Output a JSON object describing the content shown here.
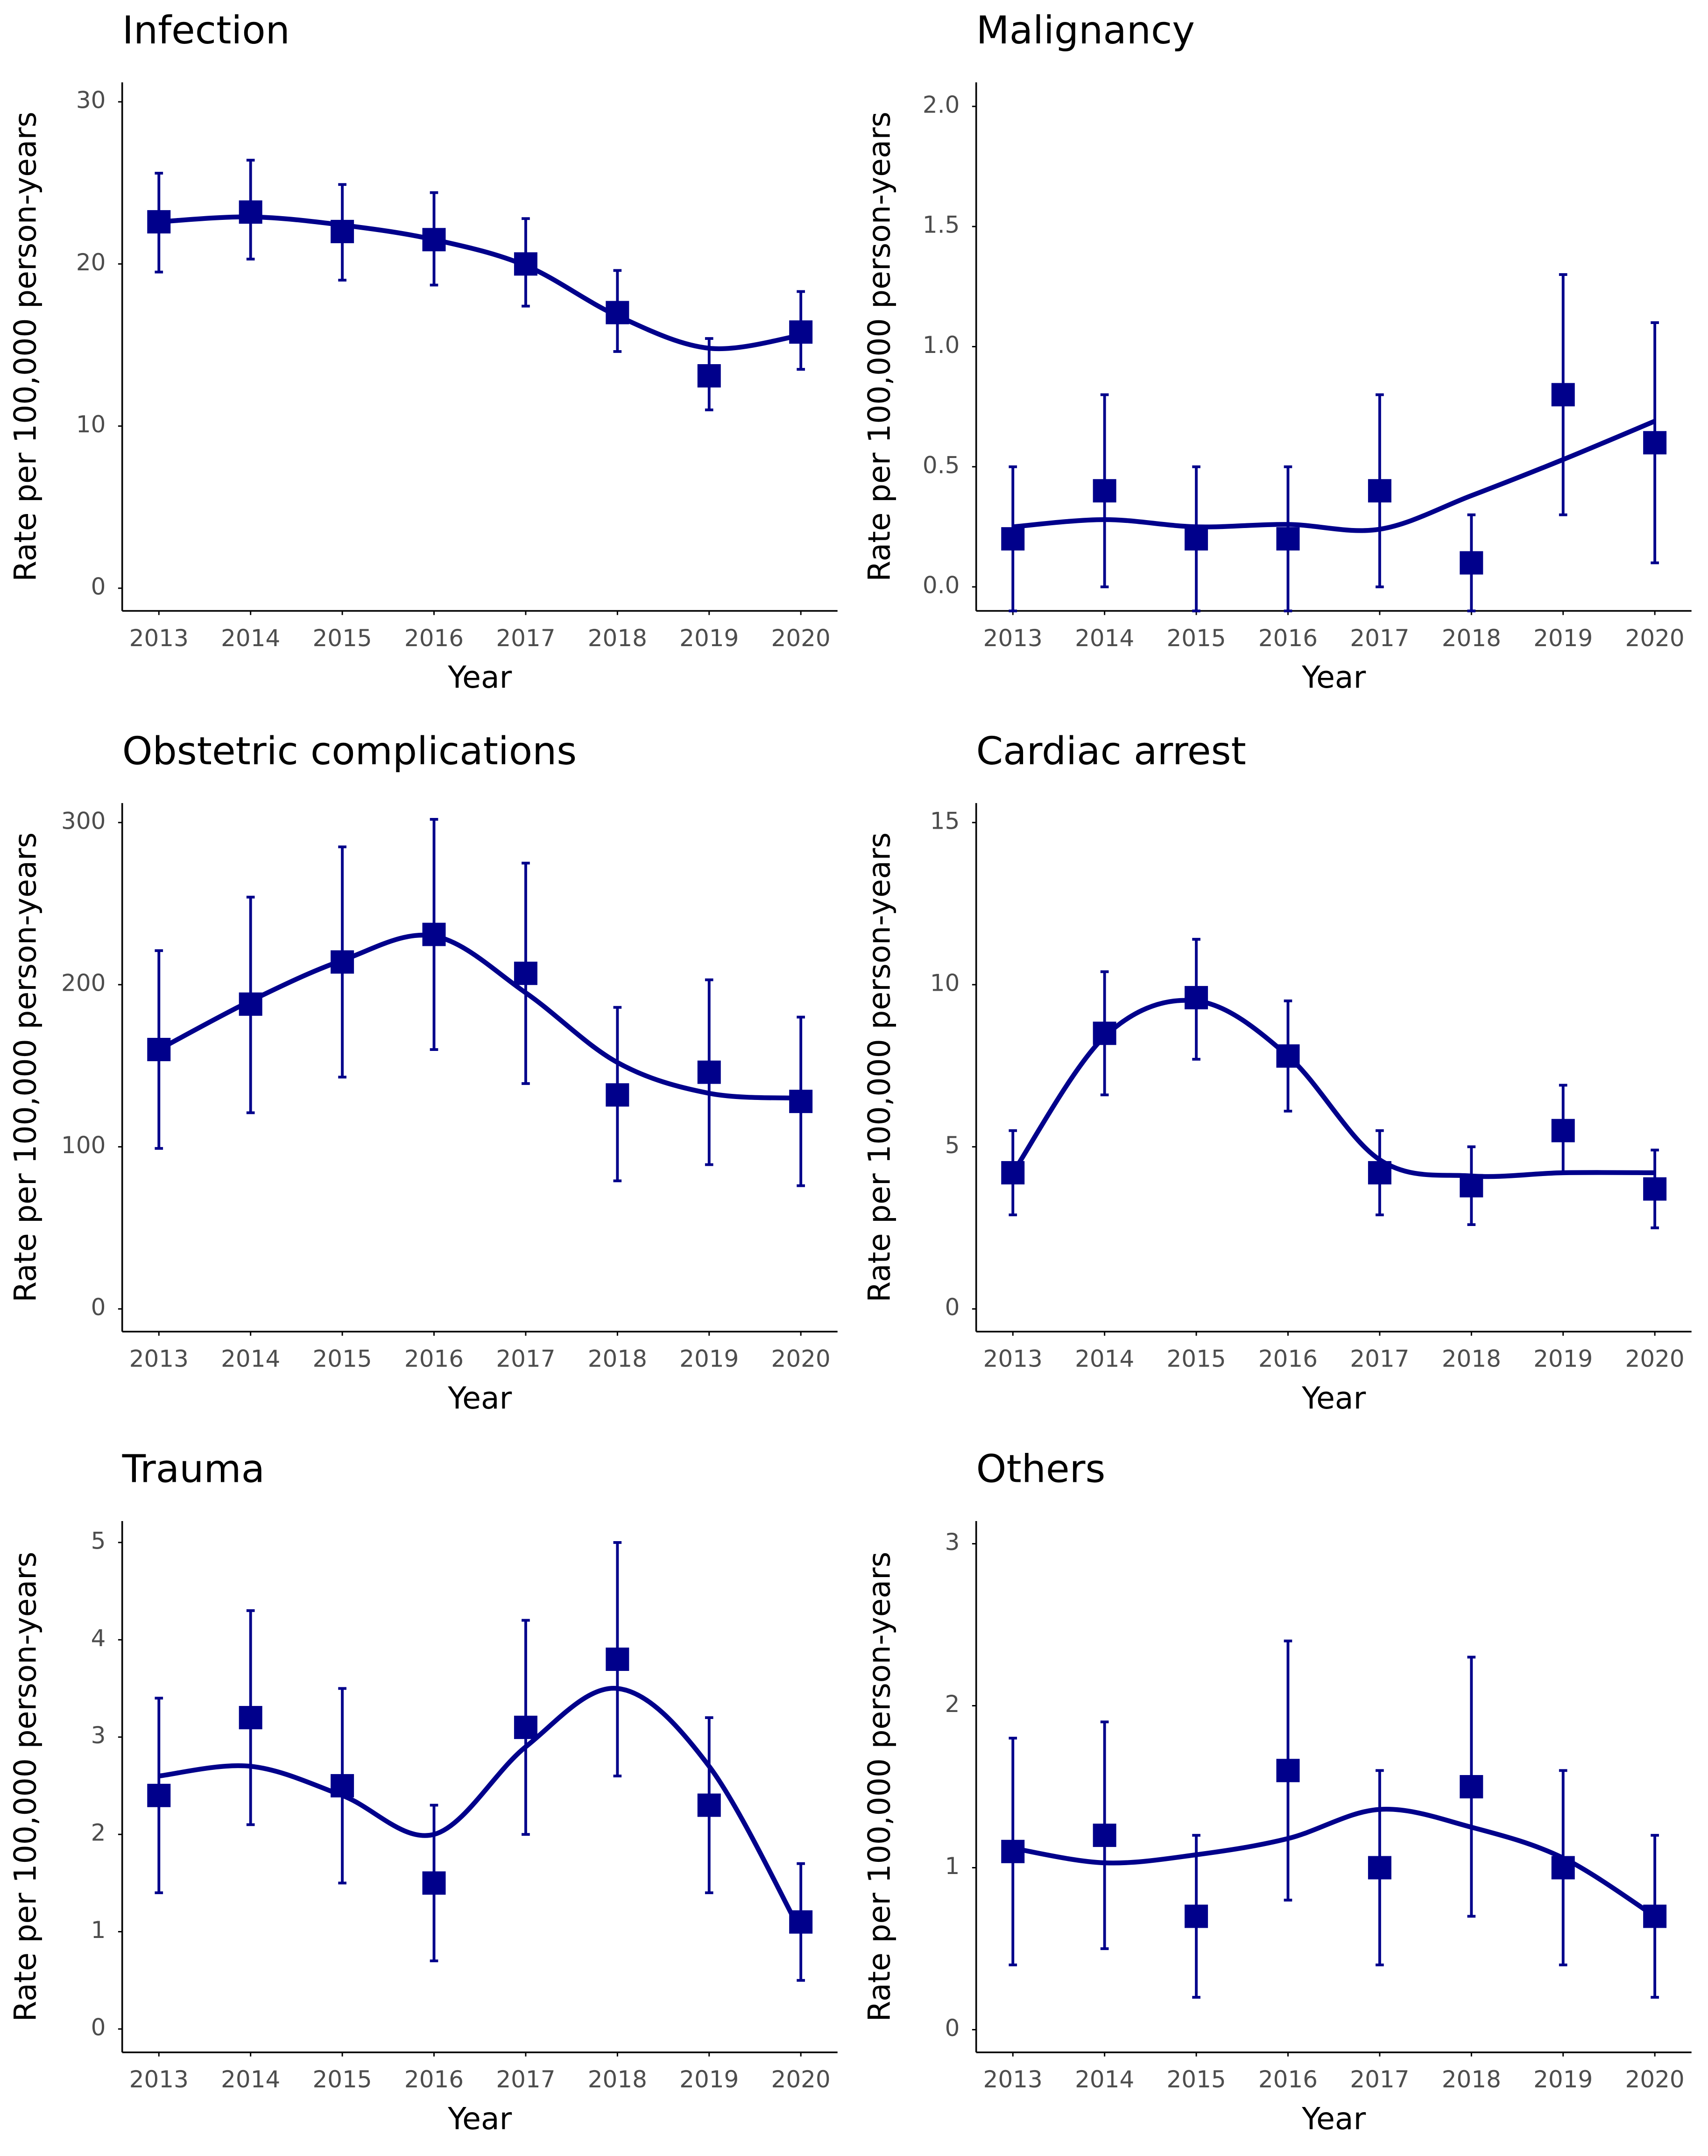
{
  "chart_data": [
    {
      "type": "errorbar",
      "title": "Infection",
      "xlabel": "Year",
      "ylabel": "Rate per 100,000 person-years",
      "color": "#00008b",
      "x": [
        2013,
        2014,
        2015,
        2016,
        2017,
        2018,
        2019,
        2020
      ],
      "values": [
        22.6,
        23.2,
        22.0,
        21.5,
        20.0,
        17.0,
        13.1,
        15.8
      ],
      "lower": [
        19.5,
        20.3,
        19.0,
        18.7,
        17.4,
        14.6,
        11.0,
        13.5
      ],
      "upper": [
        25.6,
        26.4,
        24.9,
        24.4,
        22.8,
        19.6,
        15.4,
        18.3
      ],
      "trend": [
        22.6,
        22.9,
        22.4,
        21.5,
        19.9,
        16.8,
        14.8,
        15.6
      ],
      "xlim": [
        2012.6,
        2020.4
      ],
      "xticks": [
        2013,
        2014,
        2015,
        2016,
        2017,
        2018,
        2019,
        2020
      ],
      "ylim": [
        -1.4,
        31.2
      ],
      "yticks": [
        0,
        10,
        20,
        30
      ]
    },
    {
      "type": "errorbar",
      "title": "Malignancy",
      "xlabel": "Year",
      "ylabel": "Rate per 100,000 person-years",
      "color": "#00008b",
      "x": [
        2013,
        2014,
        2015,
        2016,
        2017,
        2018,
        2019,
        2020
      ],
      "values": [
        0.2,
        0.4,
        0.2,
        0.2,
        0.4,
        0.1,
        0.8,
        0.6
      ],
      "lower": [
        -0.1,
        0.0,
        -0.1,
        -0.1,
        0.0,
        -0.1,
        0.3,
        0.1
      ],
      "upper": [
        0.5,
        0.8,
        0.5,
        0.5,
        0.8,
        0.3,
        1.3,
        1.1
      ],
      "trend": [
        0.25,
        0.28,
        0.25,
        0.26,
        0.24,
        0.38,
        0.53,
        0.69
      ],
      "xlim": [
        2012.6,
        2020.4
      ],
      "xticks": [
        2013,
        2014,
        2015,
        2016,
        2017,
        2018,
        2019,
        2020
      ],
      "ylim": [
        -0.1,
        2.1
      ],
      "yticks": [
        {
          "value": 0,
          "label": "0.0"
        },
        0.5,
        {
          "value": 1,
          "label": "1.0"
        },
        1.5,
        {
          "value": 2,
          "label": "2.0"
        }
      ]
    },
    {
      "type": "errorbar",
      "title": "Obstetric complications",
      "xlabel": "Year",
      "ylabel": "Rate per 100,000 person-years",
      "color": "#00008b",
      "x": [
        2013,
        2014,
        2015,
        2016,
        2017,
        2018,
        2019,
        2020
      ],
      "values": [
        160,
        188,
        214,
        231,
        207,
        132,
        146,
        128
      ],
      "lower": [
        99,
        121,
        143,
        160,
        139,
        79,
        89,
        76
      ],
      "upper": [
        221,
        254,
        285,
        302,
        275,
        186,
        203,
        180
      ],
      "trend": [
        160,
        190,
        215,
        230,
        195,
        152,
        133,
        130
      ],
      "xlim": [
        2012.6,
        2020.4
      ],
      "xticks": [
        2013,
        2014,
        2015,
        2016,
        2017,
        2018,
        2019,
        2020
      ],
      "ylim": [
        -14,
        312
      ],
      "yticks": [
        0,
        100,
        200,
        300
      ]
    },
    {
      "type": "errorbar",
      "title": "Cardiac arrest",
      "xlabel": "Year",
      "ylabel": "Rate per 100,000 person-years",
      "color": "#00008b",
      "x": [
        2013,
        2014,
        2015,
        2016,
        2017,
        2018,
        2019,
        2020
      ],
      "values": [
        4.2,
        8.5,
        9.6,
        7.8,
        4.2,
        3.8,
        5.5,
        3.7
      ],
      "lower": [
        2.9,
        6.6,
        7.7,
        6.1,
        2.9,
        2.6,
        4.2,
        2.5
      ],
      "upper": [
        5.5,
        10.4,
        11.4,
        9.5,
        5.5,
        5.0,
        6.9,
        4.9
      ],
      "trend": [
        4.2,
        8.4,
        9.5,
        7.8,
        4.6,
        4.1,
        4.2,
        4.2
      ],
      "xlim": [
        2012.6,
        2020.4
      ],
      "xticks": [
        2013,
        2014,
        2015,
        2016,
        2017,
        2018,
        2019,
        2020
      ],
      "ylim": [
        -0.7,
        15.6
      ],
      "yticks": [
        0,
        5,
        10,
        15
      ]
    },
    {
      "type": "errorbar",
      "title": "Trauma",
      "xlabel": "Year",
      "ylabel": "Rate per 100,000 person-years",
      "color": "#00008b",
      "x": [
        2013,
        2014,
        2015,
        2016,
        2017,
        2018,
        2019,
        2020
      ],
      "values": [
        2.4,
        3.2,
        2.5,
        1.5,
        3.1,
        3.8,
        2.3,
        1.1
      ],
      "lower": [
        1.4,
        2.1,
        1.5,
        0.7,
        2.0,
        2.6,
        1.4,
        0.5
      ],
      "upper": [
        3.4,
        4.3,
        3.5,
        2.3,
        4.2,
        5.0,
        3.2,
        1.7
      ],
      "trend": [
        2.6,
        2.7,
        2.4,
        2.0,
        2.9,
        3.5,
        2.7,
        1.0
      ],
      "xlim": [
        2012.6,
        2020.4
      ],
      "xticks": [
        2013,
        2014,
        2015,
        2016,
        2017,
        2018,
        2019,
        2020
      ],
      "ylim": [
        -0.24,
        5.22
      ],
      "yticks": [
        0,
        1,
        2,
        3,
        4,
        5
      ]
    },
    {
      "type": "errorbar",
      "title": "Others",
      "xlabel": "Year",
      "ylabel": "Rate per 100,000 person-years",
      "color": "#00008b",
      "x": [
        2013,
        2014,
        2015,
        2016,
        2017,
        2018,
        2019,
        2020
      ],
      "values": [
        1.1,
        1.2,
        0.7,
        1.6,
        1.0,
        1.5,
        1.0,
        0.7
      ],
      "lower": [
        0.4,
        0.5,
        0.2,
        0.8,
        0.4,
        0.7,
        0.4,
        0.2
      ],
      "upper": [
        1.8,
        1.9,
        1.2,
        2.4,
        1.6,
        2.3,
        1.6,
        1.2
      ],
      "trend": [
        1.12,
        1.03,
        1.08,
        1.18,
        1.36,
        1.25,
        1.06,
        0.7
      ],
      "xlim": [
        2012.6,
        2020.4
      ],
      "xticks": [
        2013,
        2014,
        2015,
        2016,
        2017,
        2018,
        2019,
        2020
      ],
      "ylim": [
        -0.14,
        3.14
      ],
      "yticks": [
        0,
        1,
        2,
        3
      ]
    }
  ]
}
